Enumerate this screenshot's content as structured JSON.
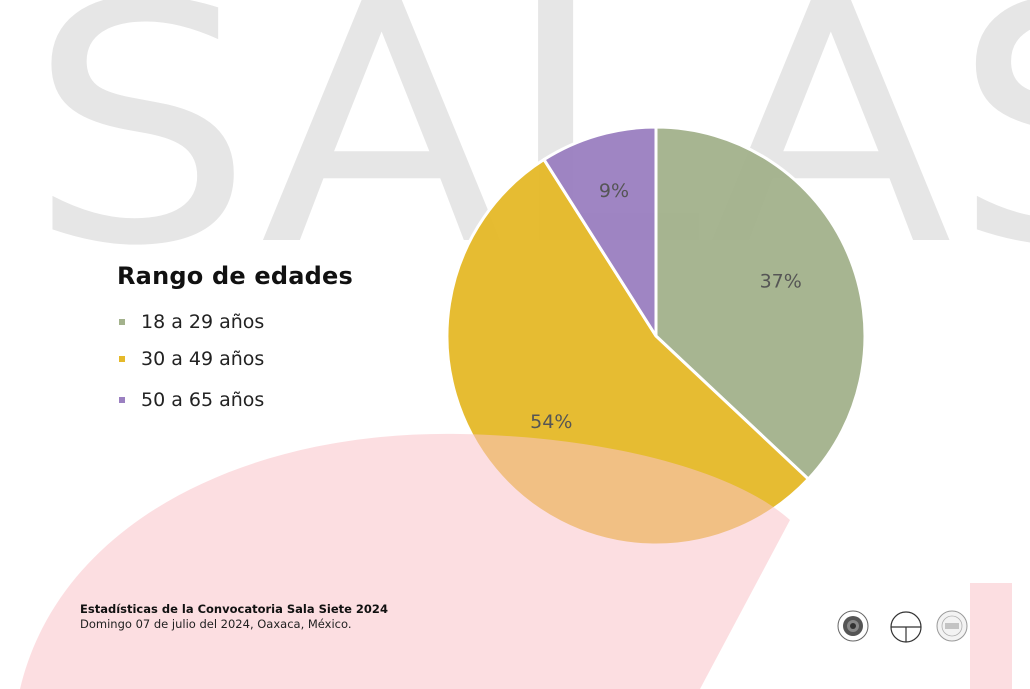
{
  "background_text": "SALAS",
  "colors": {
    "series_1": "#a3b28c",
    "series_2": "#e5b92a",
    "series_3": "#9b80c1",
    "background_letters": "#e6e6e6",
    "pink_shape": "#fbdfe1"
  },
  "chart_data": {
    "type": "pie",
    "title": "Rango de edades",
    "categories": [
      "18 a 29 años",
      "30 a 49 años",
      "50 a 65 años"
    ],
    "values": [
      37,
      54,
      9
    ],
    "labels": [
      "37%",
      "54%",
      "9%"
    ],
    "colors": [
      "#a3b28c",
      "#e5b92a",
      "#9b80c1"
    ],
    "legend_position": "left"
  },
  "footer": {
    "title": "Estadísticas de la Convocatoria Sala Siete 2024",
    "subtitle": "Domingo 07 de julio del 2024, Oaxaca, México."
  },
  "logos": [
    "seal-logo",
    "circle-cross-logo",
    "emblem-logo"
  ]
}
